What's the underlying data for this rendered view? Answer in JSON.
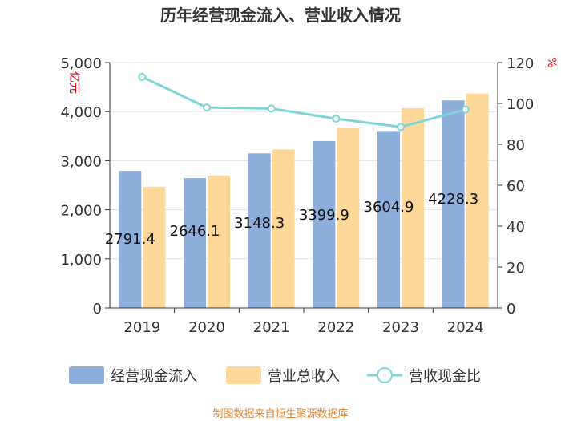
{
  "chart_data": {
    "type": "bar+line",
    "title": "历年经营现金流入、营业收入情况",
    "categories": [
      "2019",
      "2020",
      "2021",
      "2022",
      "2023",
      "2024"
    ],
    "y_left": {
      "label": "亿元",
      "ylim": [
        0,
        5000
      ],
      "ticks": [
        "0",
        "1,000",
        "2,000",
        "3,000",
        "4,000",
        "5,000"
      ]
    },
    "y_right": {
      "label": "%",
      "ylim": [
        0,
        120
      ],
      "ticks": [
        "0",
        "20",
        "40",
        "60",
        "80",
        "100",
        "120"
      ]
    },
    "series": [
      {
        "name": "经营现金流入",
        "axis": "left",
        "type": "bar",
        "color": "#8EAEDC",
        "values": [
          2791.4,
          2646.1,
          3148.3,
          3399.9,
          3604.9,
          4228.3
        ],
        "labels": [
          "2791.4",
          "2646.1",
          "3148.3",
          "3399.9",
          "3604.9",
          "4228.3"
        ]
      },
      {
        "name": "营业总收入",
        "axis": "left",
        "type": "bar",
        "color": "#FDD899",
        "values": [
          2470,
          2700,
          3230,
          3670,
          4070,
          4370
        ]
      },
      {
        "name": "营收现金比",
        "axis": "right",
        "type": "line",
        "color": "#7FD4D8",
        "values": [
          113,
          98,
          97.5,
          92.5,
          88.5,
          97
        ]
      }
    ],
    "grid": true,
    "legend": "bottom",
    "source": "制图数据来自恒生聚源数据库"
  }
}
